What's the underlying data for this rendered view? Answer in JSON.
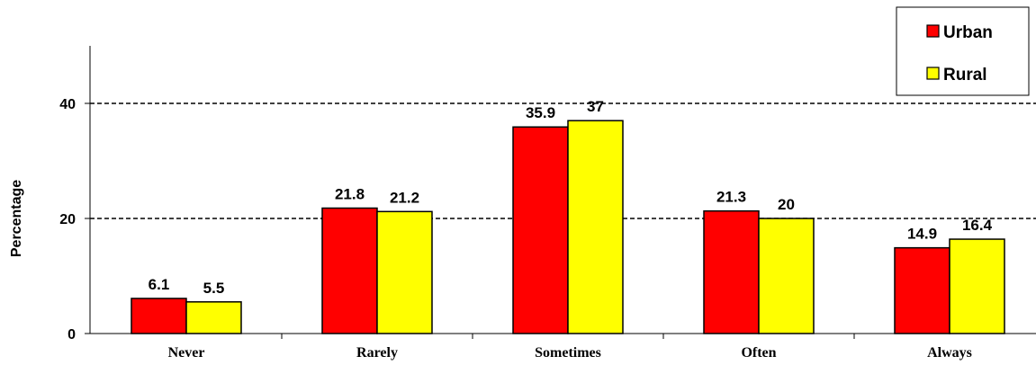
{
  "chart_data": {
    "type": "bar",
    "categories": [
      "Never",
      "Rarely",
      "Sometimes",
      "Often",
      "Always"
    ],
    "series": [
      {
        "name": "Urban",
        "color": "#ff0000",
        "values": [
          6.1,
          21.8,
          35.9,
          21.3,
          14.9
        ],
        "labels": [
          "6.1",
          "21.8",
          "35.9",
          "21.3",
          "14.9"
        ]
      },
      {
        "name": "Rural",
        "color": "#ffff00",
        "values": [
          5.5,
          21.2,
          37,
          20,
          16.4
        ],
        "labels": [
          "5.5",
          "21.2",
          "37",
          "20",
          "16.4"
        ]
      }
    ],
    "title": "",
    "xlabel": "",
    "ylabel": "Percentage",
    "ylim": [
      0,
      50
    ],
    "yticks": [
      0,
      20,
      40
    ],
    "ytick_labels": [
      "0",
      "20",
      "40"
    ],
    "gridlines": [
      20,
      40
    ],
    "grid_style": "dashed",
    "legend_position": "top-right"
  }
}
